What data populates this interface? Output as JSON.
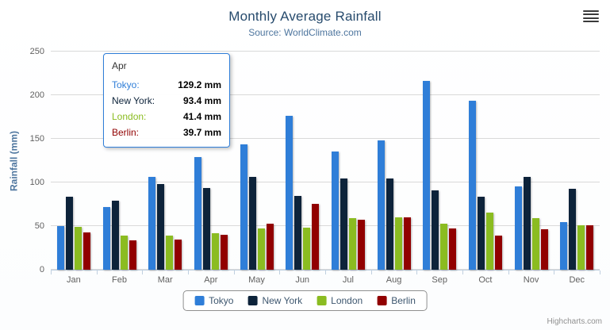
{
  "header": {
    "menu_icon": "hamburger-menu-icon"
  },
  "credits": "Highcharts.com",
  "tooltip": {
    "header": "Apr",
    "rows": [
      {
        "name": "Tokyo",
        "value": "129.2 mm",
        "color": "#2f7ed8"
      },
      {
        "name": "New York",
        "value": "93.4 mm",
        "color": "#0d233a"
      },
      {
        "name": "London",
        "value": "41.4 mm",
        "color": "#8bbc21"
      },
      {
        "name": "Berlin",
        "value": "39.7 mm",
        "color": "#910000"
      }
    ]
  },
  "chart_data": {
    "type": "bar",
    "title": "Monthly Average Rainfall",
    "subtitle": "Source: WorldClimate.com",
    "xlabel": "",
    "ylabel": "Rainfall (mm)",
    "ylim": [
      0,
      250
    ],
    "yticks": [
      0,
      50,
      100,
      150,
      200,
      250
    ],
    "grid": true,
    "legend_position": "bottom",
    "categories": [
      "Jan",
      "Feb",
      "Mar",
      "Apr",
      "May",
      "Jun",
      "Jul",
      "Aug",
      "Sep",
      "Oct",
      "Nov",
      "Dec"
    ],
    "series": [
      {
        "name": "Tokyo",
        "color": "#2f7ed8",
        "values": [
          49.9,
          71.5,
          106.4,
          129.2,
          144.0,
          176.0,
          135.6,
          148.5,
          216.4,
          194.1,
          95.6,
          54.4
        ]
      },
      {
        "name": "New York",
        "color": "#0d233a",
        "values": [
          83.6,
          78.8,
          98.5,
          93.4,
          106.0,
          84.5,
          105.0,
          104.3,
          91.2,
          83.5,
          106.6,
          92.3
        ]
      },
      {
        "name": "London",
        "color": "#8bbc21",
        "values": [
          48.9,
          38.8,
          39.3,
          41.4,
          47.0,
          48.3,
          59.0,
          59.6,
          52.4,
          65.2,
          59.3,
          51.2
        ]
      },
      {
        "name": "Berlin",
        "color": "#910000",
        "values": [
          42.4,
          33.2,
          34.5,
          39.7,
          52.6,
          75.5,
          57.4,
          60.4,
          47.6,
          39.1,
          46.8,
          51.1
        ]
      }
    ]
  }
}
